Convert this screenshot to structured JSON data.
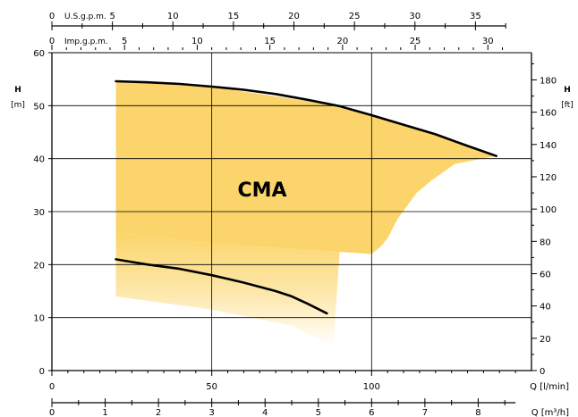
{
  "chart_data": {
    "type": "area",
    "label": "CMA",
    "axes": {
      "left": {
        "title": "H",
        "unit": "[m]",
        "range": [
          0,
          60
        ],
        "ticks": [
          0,
          10,
          20,
          30,
          40,
          50,
          60
        ]
      },
      "right": {
        "title": "H",
        "unit": "[ft]",
        "range": [
          0,
          196.85
        ],
        "ticks": [
          0,
          20,
          40,
          60,
          80,
          100,
          120,
          140,
          160,
          180
        ]
      },
      "bottom_flow": {
        "label": "Q [l/min]",
        "range": [
          0,
          150
        ],
        "ticks": [
          0,
          50,
          100
        ]
      },
      "bottom_m3h": {
        "label": "Q [m³/h]",
        "range": [
          0,
          9
        ],
        "ticks": [
          0,
          1,
          2,
          3,
          4,
          5,
          6,
          7,
          8
        ]
      },
      "top_us": {
        "label": "U.S.g.p.m.",
        "range": [
          0,
          39.63
        ],
        "ticks": [
          0,
          5,
          10,
          15,
          20,
          25,
          30,
          35
        ]
      },
      "top_imp": {
        "label": "Imp.g.p.m.",
        "range": [
          0,
          33.0
        ],
        "ticks": [
          0,
          5,
          10,
          15,
          20,
          25,
          30
        ]
      }
    },
    "grid": true,
    "gridlines_x_l_min": [
      50,
      100
    ],
    "gridlines_y_m": [
      10,
      20,
      30,
      40,
      50
    ],
    "series": [
      {
        "role": "upper-curve",
        "x_l_min": [
          20,
          30,
          40,
          50,
          60,
          70,
          80,
          90,
          100,
          110,
          120,
          130,
          139
        ],
        "y_m": [
          54.6,
          54.4,
          54.1,
          53.6,
          53.0,
          52.2,
          51.1,
          49.9,
          48.2,
          46.4,
          44.6,
          42.4,
          40.5
        ]
      },
      {
        "role": "lower-curve",
        "x_l_min": [
          20,
          25,
          30,
          40,
          50,
          60,
          70,
          75,
          80,
          86
        ],
        "y_m": [
          21.0,
          20.5,
          20.0,
          19.2,
          18.0,
          16.6,
          15.0,
          14.0,
          12.6,
          10.8
        ]
      }
    ],
    "envelope": {
      "x_l_min": [
        20,
        50,
        90,
        95,
        100,
        103,
        105,
        108,
        111,
        114,
        119,
        126,
        139
      ],
      "y_m_top": [
        54.6,
        53.6,
        49.9,
        49.0,
        48.2,
        47.6,
        47.2,
        46.8,
        46.3,
        45.8,
        45.0,
        43.2,
        40.5
      ],
      "y_m_bottom_solid": [
        26.0,
        24.0,
        22.4,
        22.2,
        22.0,
        23.5,
        25.0,
        28.5,
        31.0,
        33.5,
        36.0,
        39.0,
        40.5
      ],
      "fade_bottom_x_l_min": [
        20,
        50,
        75,
        88
      ],
      "fade_bottom_y_m": [
        14.0,
        11.5,
        8.5,
        4.5
      ]
    },
    "fill_color": "#fbd56b",
    "line_color": "#000000"
  }
}
